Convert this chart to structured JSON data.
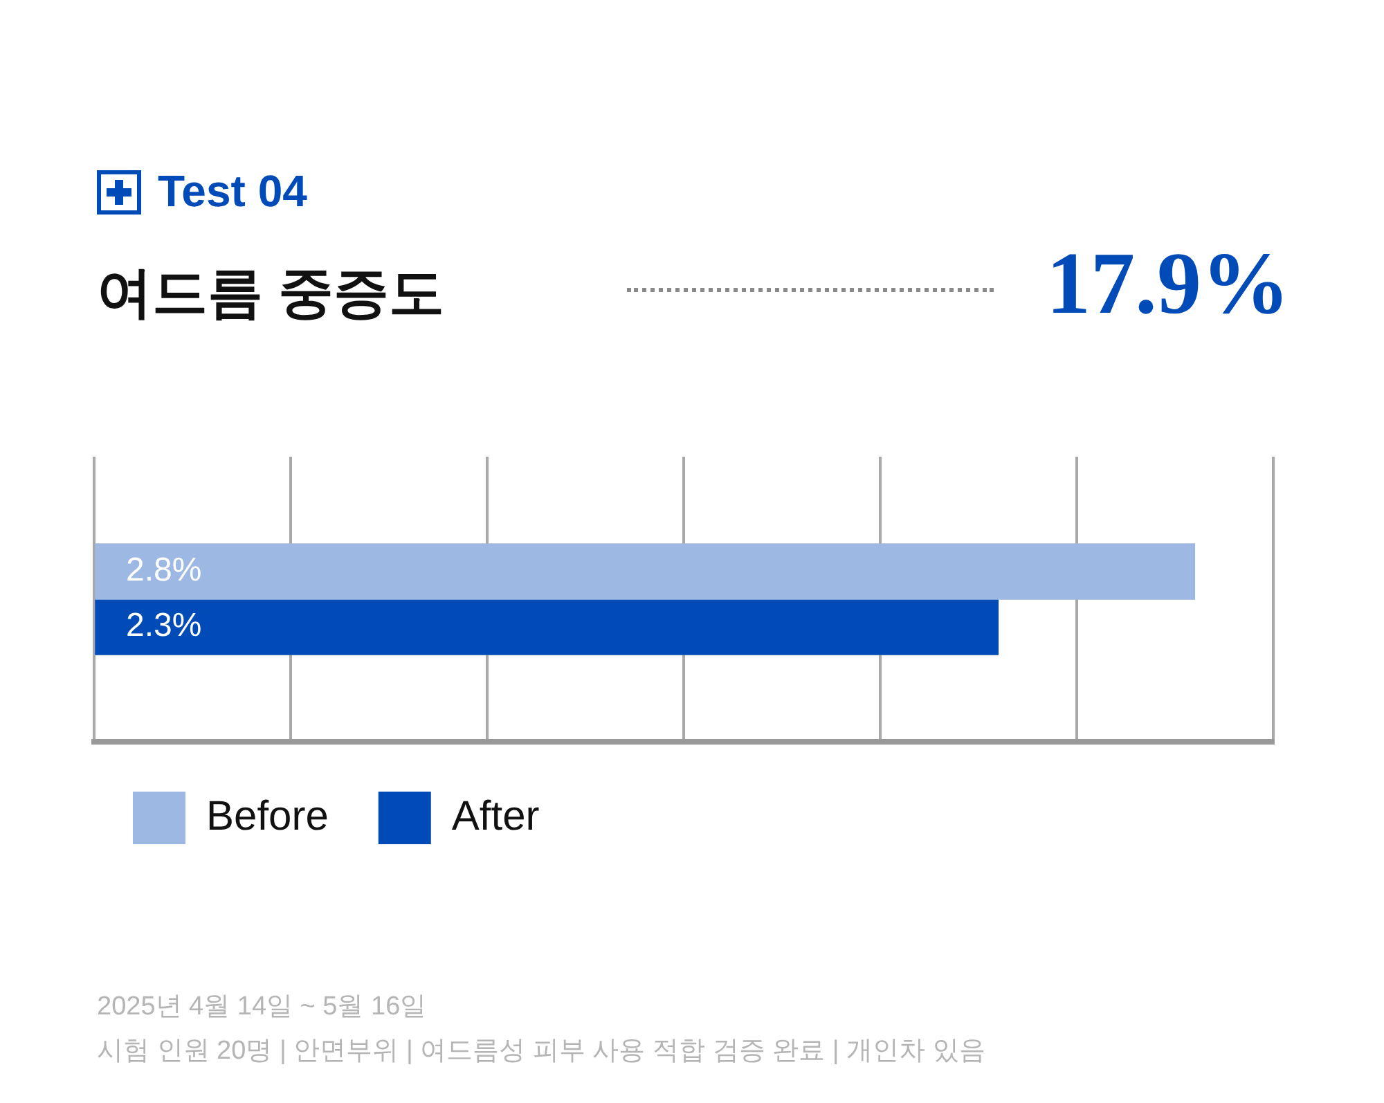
{
  "chart_data": {
    "type": "bar",
    "orientation": "horizontal",
    "subtitle": "Test 04",
    "title": "여드름 중증도",
    "categories": [
      null
    ],
    "series": [
      {
        "name": "Before",
        "color": "#9db8e2",
        "values": [
          2.8
        ],
        "value_labels": [
          "2.8%"
        ]
      },
      {
        "name": "After",
        "color": "#004bb8",
        "values": [
          2.3
        ],
        "value_labels": [
          "2.3%"
        ]
      }
    ],
    "grid": "x",
    "tick_labels": false,
    "legend": "bottom left",
    "annotations": [
      "17.9%",
      "2025년 4월 14일 ~ 5월 16일",
      "시험 인원 20명 | 안면부위 | 여드름성 피부 사용 적합 검증 완료 | 개인차 있음"
    ]
  }
}
